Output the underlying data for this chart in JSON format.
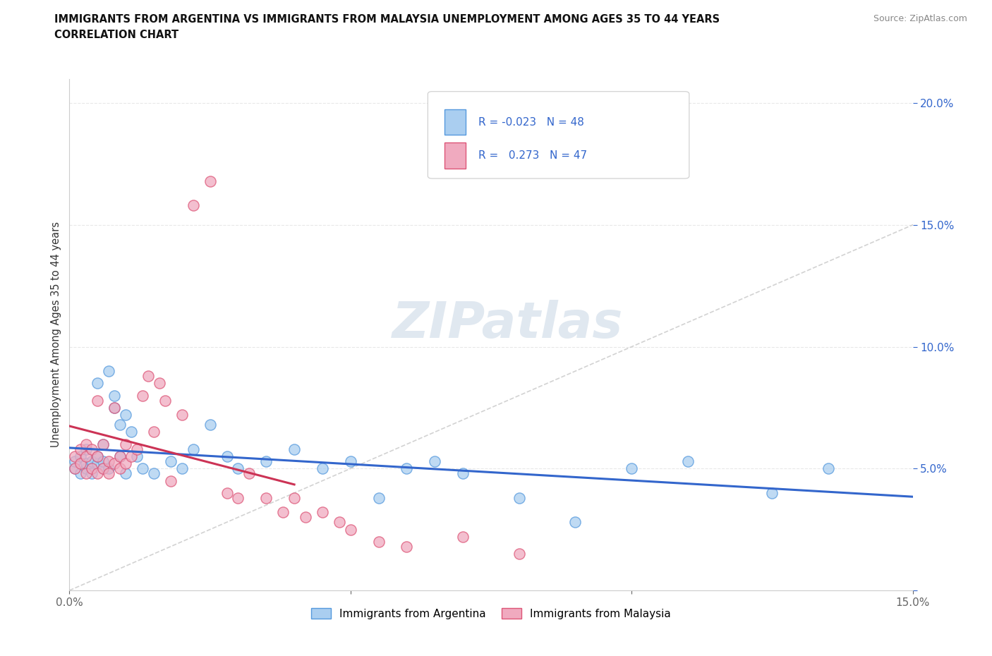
{
  "title_line1": "IMMIGRANTS FROM ARGENTINA VS IMMIGRANTS FROM MALAYSIA UNEMPLOYMENT AMONG AGES 35 TO 44 YEARS",
  "title_line2": "CORRELATION CHART",
  "source": "Source: ZipAtlas.com",
  "ylabel": "Unemployment Among Ages 35 to 44 years",
  "xlim": [
    0,
    0.15
  ],
  "ylim": [
    0,
    0.21
  ],
  "legend_R_argentina": "-0.023",
  "legend_N_argentina": "48",
  "legend_R_malaysia": "0.273",
  "legend_N_malaysia": "47",
  "color_argentina": "#aacef0",
  "color_malaysia": "#f0aabf",
  "color_argentina_edge": "#5599dd",
  "color_malaysia_edge": "#dd5577",
  "color_argentina_line": "#3366cc",
  "color_malaysia_line": "#cc3355",
  "color_diagonal": "#c0c0c0",
  "watermark_color": "#e0e8f0",
  "background_color": "#ffffff",
  "grid_color": "#e8e8e8",
  "argentina_x": [
    0.001,
    0.001,
    0.002,
    0.002,
    0.003,
    0.003,
    0.003,
    0.004,
    0.004,
    0.004,
    0.005,
    0.005,
    0.005,
    0.006,
    0.006,
    0.006,
    0.007,
    0.007,
    0.008,
    0.008,
    0.009,
    0.009,
    0.01,
    0.01,
    0.011,
    0.012,
    0.013,
    0.015,
    0.018,
    0.02,
    0.022,
    0.025,
    0.028,
    0.03,
    0.035,
    0.04,
    0.045,
    0.05,
    0.055,
    0.06,
    0.065,
    0.07,
    0.08,
    0.09,
    0.1,
    0.11,
    0.125,
    0.135
  ],
  "argentina_y": [
    0.05,
    0.053,
    0.048,
    0.055,
    0.05,
    0.052,
    0.058,
    0.05,
    0.053,
    0.048,
    0.085,
    0.052,
    0.055,
    0.05,
    0.053,
    0.06,
    0.09,
    0.05,
    0.08,
    0.075,
    0.068,
    0.055,
    0.072,
    0.048,
    0.065,
    0.055,
    0.05,
    0.048,
    0.053,
    0.05,
    0.058,
    0.068,
    0.055,
    0.05,
    0.053,
    0.058,
    0.05,
    0.053,
    0.038,
    0.05,
    0.053,
    0.048,
    0.038,
    0.028,
    0.05,
    0.053,
    0.04,
    0.05
  ],
  "malaysia_x": [
    0.001,
    0.001,
    0.002,
    0.002,
    0.003,
    0.003,
    0.003,
    0.004,
    0.004,
    0.005,
    0.005,
    0.005,
    0.006,
    0.006,
    0.007,
    0.007,
    0.008,
    0.008,
    0.009,
    0.009,
    0.01,
    0.01,
    0.011,
    0.012,
    0.013,
    0.014,
    0.015,
    0.016,
    0.017,
    0.018,
    0.02,
    0.022,
    0.025,
    0.028,
    0.03,
    0.032,
    0.035,
    0.038,
    0.04,
    0.042,
    0.045,
    0.048,
    0.05,
    0.055,
    0.06,
    0.07,
    0.08
  ],
  "malaysia_y": [
    0.05,
    0.055,
    0.052,
    0.058,
    0.055,
    0.06,
    0.048,
    0.05,
    0.058,
    0.078,
    0.055,
    0.048,
    0.05,
    0.06,
    0.053,
    0.048,
    0.052,
    0.075,
    0.055,
    0.05,
    0.06,
    0.052,
    0.055,
    0.058,
    0.08,
    0.088,
    0.065,
    0.085,
    0.078,
    0.045,
    0.072,
    0.158,
    0.168,
    0.04,
    0.038,
    0.048,
    0.038,
    0.032,
    0.038,
    0.03,
    0.032,
    0.028,
    0.025,
    0.02,
    0.018,
    0.022,
    0.015
  ]
}
